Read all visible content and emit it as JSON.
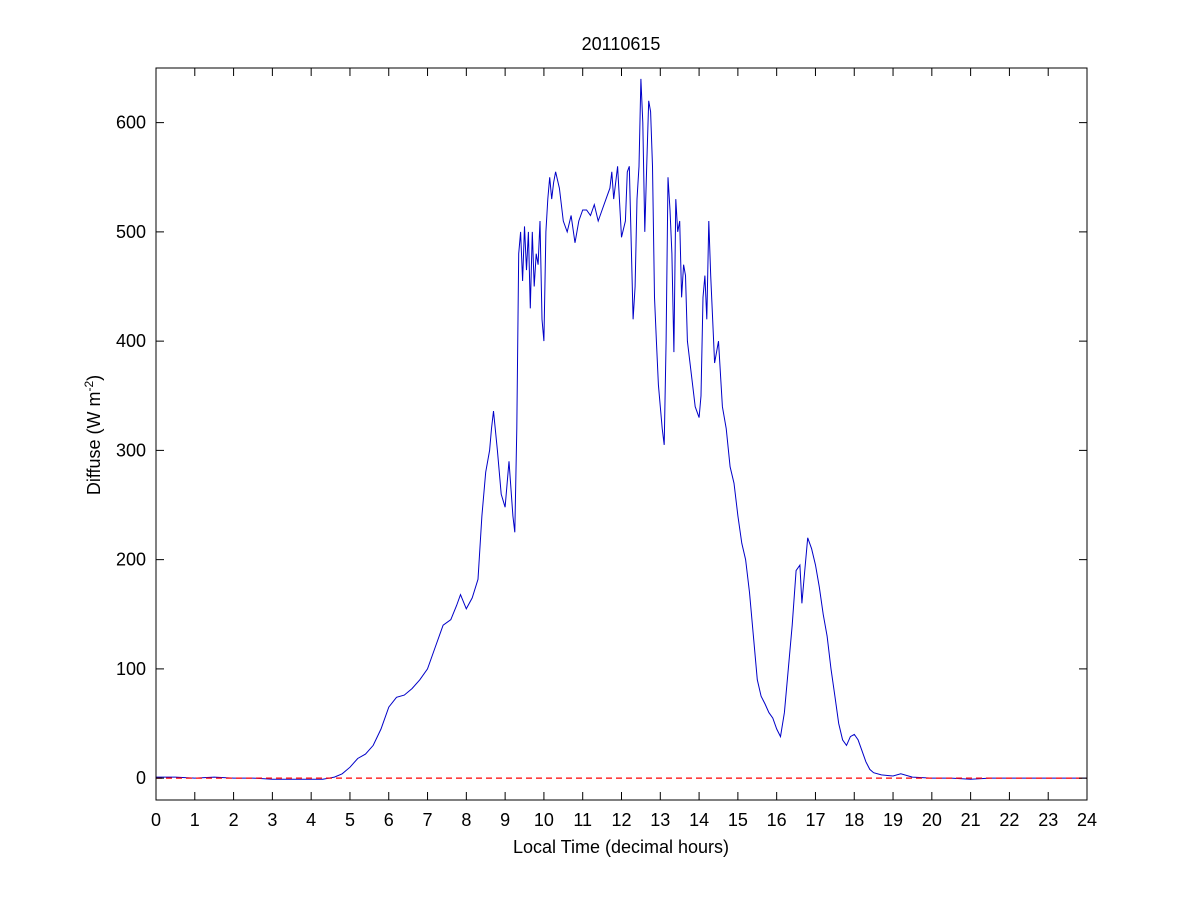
{
  "chart_data": {
    "type": "line",
    "title": "20110615",
    "xlabel": "Local Time (decimal hours)",
    "ylabel": {
      "prefix": "Diffuse (W m",
      "superscript": "-2",
      "suffix": ")"
    },
    "xlim": [
      0,
      24
    ],
    "ylim": [
      -20,
      650
    ],
    "x_ticks": [
      0,
      1,
      2,
      3,
      4,
      5,
      6,
      7,
      8,
      9,
      10,
      11,
      12,
      13,
      14,
      15,
      16,
      17,
      18,
      19,
      20,
      21,
      22,
      23,
      24
    ],
    "y_ticks": [
      0,
      100,
      200,
      300,
      400,
      500,
      600
    ],
    "grid": false,
    "legend": "none",
    "series": [
      {
        "color": "#0000c8",
        "style": "solid",
        "x": [
          0,
          0.5,
          1,
          1.5,
          2,
          2.5,
          3,
          3.5,
          4,
          4.3,
          4.6,
          4.8,
          5,
          5.2,
          5.4,
          5.6,
          5.8,
          6,
          6.2,
          6.4,
          6.6,
          6.8,
          7,
          7.2,
          7.4,
          7.6,
          7.75,
          7.85,
          8,
          8.15,
          8.3,
          8.4,
          8.5,
          8.6,
          8.65,
          8.7,
          8.8,
          8.9,
          9,
          9.1,
          9.2,
          9.25,
          9.3,
          9.35,
          9.4,
          9.45,
          9.5,
          9.55,
          9.6,
          9.65,
          9.7,
          9.75,
          9.8,
          9.85,
          9.9,
          9.95,
          10,
          10.05,
          10.1,
          10.15,
          10.2,
          10.25,
          10.3,
          10.4,
          10.5,
          10.6,
          10.7,
          10.8,
          10.9,
          11,
          11.1,
          11.2,
          11.3,
          11.4,
          11.5,
          11.6,
          11.7,
          11.75,
          11.8,
          11.9,
          12,
          12.1,
          12.15,
          12.2,
          12.3,
          12.35,
          12.4,
          12.45,
          12.5,
          12.55,
          12.6,
          12.65,
          12.7,
          12.75,
          12.8,
          12.85,
          12.9,
          12.95,
          13,
          13.05,
          13.1,
          13.15,
          13.2,
          13.25,
          13.3,
          13.35,
          13.4,
          13.45,
          13.5,
          13.55,
          13.6,
          13.65,
          13.7,
          13.8,
          13.9,
          14,
          14.05,
          14.1,
          14.15,
          14.2,
          14.25,
          14.3,
          14.4,
          14.5,
          14.6,
          14.7,
          14.8,
          14.9,
          15,
          15.1,
          15.2,
          15.3,
          15.4,
          15.5,
          15.6,
          15.7,
          15.8,
          15.9,
          16,
          16.1,
          16.2,
          16.3,
          16.4,
          16.5,
          16.6,
          16.65,
          16.7,
          16.8,
          16.9,
          17,
          17.1,
          17.2,
          17.3,
          17.4,
          17.5,
          17.6,
          17.7,
          17.8,
          17.9,
          18,
          18.1,
          18.2,
          18.3,
          18.4,
          18.5,
          18.7,
          19,
          19.2,
          19.5,
          20,
          20.5,
          21,
          21.5,
          22,
          22.5,
          23,
          23.5,
          24
        ],
        "y": [
          1,
          1,
          0,
          1,
          0,
          0,
          -1,
          -1,
          -1,
          -1,
          1,
          4,
          10,
          18,
          22,
          30,
          45,
          65,
          74,
          76,
          82,
          90,
          100,
          120,
          140,
          145,
          158,
          168,
          155,
          165,
          182,
          240,
          280,
          300,
          320,
          336,
          300,
          260,
          248,
          290,
          240,
          225,
          320,
          480,
          500,
          455,
          505,
          465,
          500,
          430,
          500,
          450,
          480,
          470,
          510,
          420,
          400,
          500,
          530,
          550,
          530,
          545,
          555,
          540,
          510,
          500,
          515,
          490,
          510,
          520,
          520,
          515,
          525,
          510,
          520,
          530,
          540,
          555,
          530,
          560,
          495,
          510,
          555,
          560,
          420,
          450,
          530,
          560,
          640,
          600,
          500,
          560,
          620,
          610,
          560,
          440,
          400,
          360,
          340,
          320,
          305,
          400,
          550,
          520,
          480,
          390,
          530,
          500,
          510,
          440,
          470,
          460,
          400,
          370,
          340,
          330,
          350,
          440,
          460,
          420,
          510,
          460,
          380,
          400,
          340,
          320,
          285,
          270,
          240,
          215,
          200,
          170,
          130,
          90,
          75,
          68,
          60,
          55,
          45,
          38,
          60,
          100,
          140,
          190,
          195,
          160,
          180,
          220,
          210,
          195,
          175,
          150,
          130,
          100,
          75,
          50,
          35,
          30,
          38,
          40,
          35,
          25,
          15,
          8,
          5,
          3,
          2,
          4,
          1,
          0,
          0,
          -1,
          0,
          0,
          0,
          0,
          0,
          0
        ]
      },
      {
        "color": "#ff0000",
        "style": "dashed",
        "x": [
          0,
          24
        ],
        "y": [
          0,
          0
        ]
      }
    ]
  }
}
